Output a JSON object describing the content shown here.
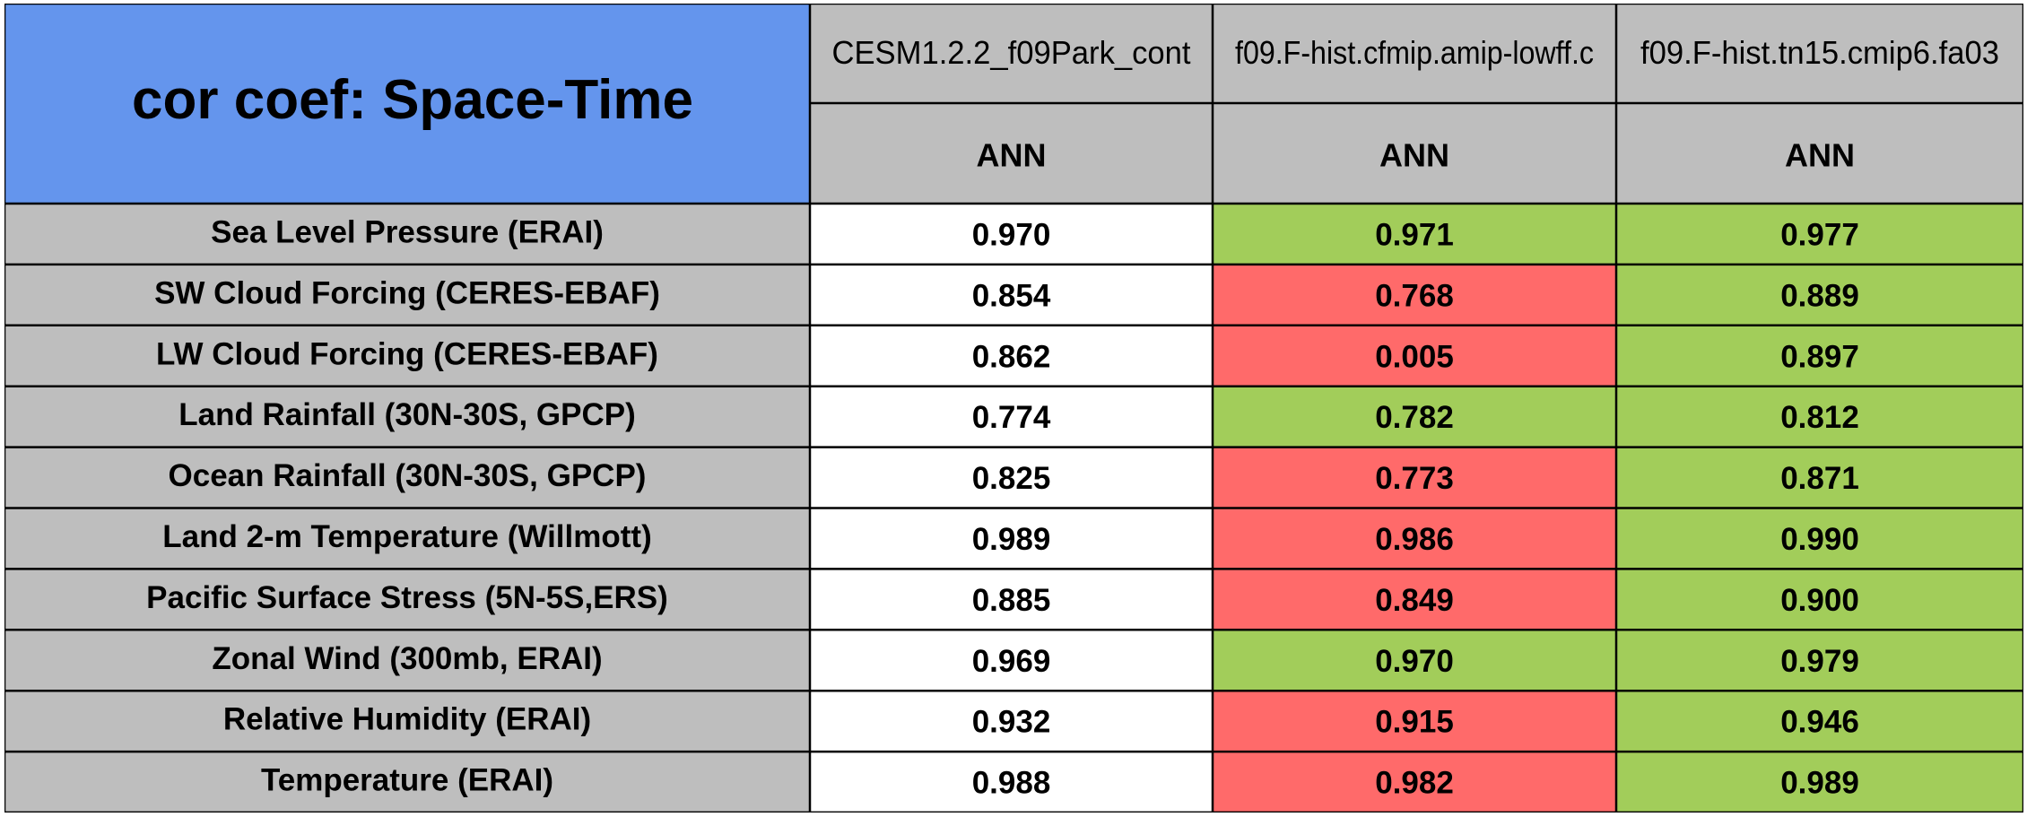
{
  "chart_data": {
    "type": "table",
    "title": "cor coef: Space-Time",
    "columns": [
      "CESM1.2.2_f09Park_cont",
      "f09.F-hist.cfmip.amip-lowff.c",
      "f09.F-hist.tn15.cmip6.fa03"
    ],
    "column_subheaders": [
      "ANN",
      "ANN",
      "ANN"
    ],
    "rows": [
      {
        "label": "Sea Level Pressure (ERAI)",
        "values": [
          0.97,
          0.971,
          0.977
        ],
        "display": [
          "0.970",
          "0.971",
          "0.977"
        ],
        "status": [
          "base",
          "better",
          "better"
        ]
      },
      {
        "label": "SW Cloud Forcing (CERES-EBAF)",
        "values": [
          0.854,
          0.768,
          0.889
        ],
        "display": [
          "0.854",
          "0.768",
          "0.889"
        ],
        "status": [
          "base",
          "worse",
          "better"
        ]
      },
      {
        "label": "LW Cloud Forcing (CERES-EBAF)",
        "values": [
          0.862,
          0.005,
          0.897
        ],
        "display": [
          "0.862",
          "0.005",
          "0.897"
        ],
        "status": [
          "base",
          "worse",
          "better"
        ]
      },
      {
        "label": "Land Rainfall (30N-30S, GPCP)",
        "values": [
          0.774,
          0.782,
          0.812
        ],
        "display": [
          "0.774",
          "0.782",
          "0.812"
        ],
        "status": [
          "base",
          "better",
          "better"
        ]
      },
      {
        "label": "Ocean Rainfall (30N-30S, GPCP)",
        "values": [
          0.825,
          0.773,
          0.871
        ],
        "display": [
          "0.825",
          "0.773",
          "0.871"
        ],
        "status": [
          "base",
          "worse",
          "better"
        ]
      },
      {
        "label": "Land 2-m Temperature (Willmott)",
        "values": [
          0.989,
          0.986,
          0.99
        ],
        "display": [
          "0.989",
          "0.986",
          "0.990"
        ],
        "status": [
          "base",
          "worse",
          "better"
        ]
      },
      {
        "label": "Pacific Surface Stress (5N-5S,ERS)",
        "values": [
          0.885,
          0.849,
          0.9
        ],
        "display": [
          "0.885",
          "0.849",
          "0.900"
        ],
        "status": [
          "base",
          "worse",
          "better"
        ]
      },
      {
        "label": "Zonal Wind (300mb, ERAI)",
        "values": [
          0.969,
          0.97,
          0.979
        ],
        "display": [
          "0.969",
          "0.970",
          "0.979"
        ],
        "status": [
          "base",
          "better",
          "better"
        ]
      },
      {
        "label": "Relative Humidity (ERAI)",
        "values": [
          0.932,
          0.915,
          0.946
        ],
        "display": [
          "0.932",
          "0.915",
          "0.946"
        ],
        "status": [
          "base",
          "worse",
          "better"
        ]
      },
      {
        "label": "Temperature (ERAI)",
        "values": [
          0.988,
          0.982,
          0.989
        ],
        "display": [
          "0.988",
          "0.982",
          "0.989"
        ],
        "status": [
          "base",
          "worse",
          "better"
        ]
      }
    ]
  },
  "colors": {
    "title_bg": "#6495ED",
    "header_bg": "#BEBEBE",
    "label_bg": "#BEBEBE",
    "base": "#FFFFFF",
    "better": "#A2CD5A",
    "worse": "#FF6A6A",
    "grid": "#000000"
  }
}
